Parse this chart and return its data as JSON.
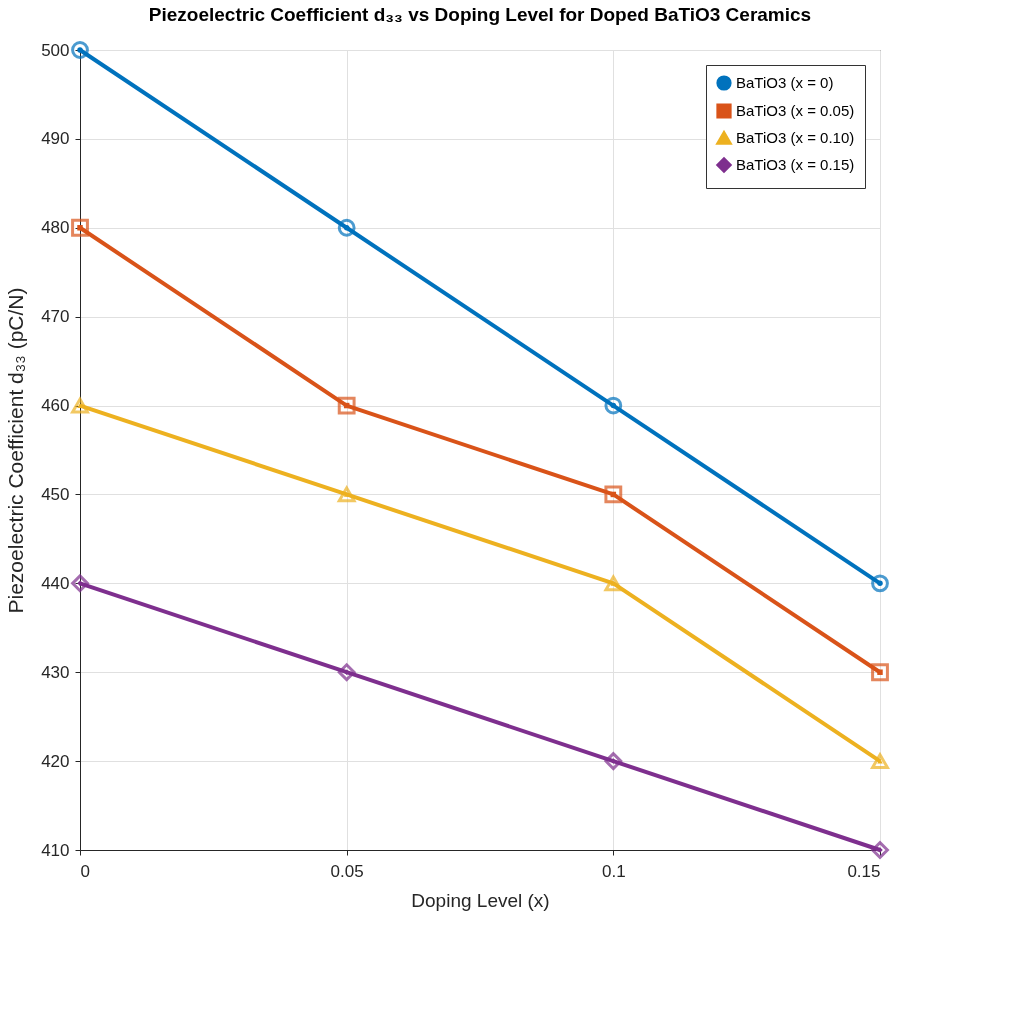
{
  "chart_data": {
    "type": "line",
    "title": "Piezoelectric Coefficient d₃₃ vs Doping Level for Doped BaTiO3 Ceramics",
    "xlabel": "Doping Level (x)",
    "ylabel": "Piezoelectric Coefficient d₃₃  (pC/N)",
    "x": [
      0,
      0.05,
      0.1,
      0.15
    ],
    "series": [
      {
        "name": "BaTiO3 (x = 0)",
        "color": "#0072bd",
        "marker": "circle",
        "values": [
          500,
          480,
          460,
          440
        ]
      },
      {
        "name": "BaTiO3 (x = 0.05)",
        "color": "#d95319",
        "marker": "square",
        "values": [
          480,
          460,
          450,
          430
        ]
      },
      {
        "name": "BaTiO3 (x = 0.10)",
        "color": "#edb120",
        "marker": "triangle",
        "values": [
          460,
          450,
          440,
          420
        ]
      },
      {
        "name": "BaTiO3 (x = 0.15)",
        "color": "#7e2f8e",
        "marker": "diamond",
        "values": [
          440,
          430,
          420,
          410
        ]
      }
    ],
    "xlim": [
      0,
      0.15
    ],
    "xticks": [
      0,
      0.05,
      0.1,
      0.15
    ],
    "ylim": [
      410,
      500
    ],
    "yticks": [
      410,
      420,
      430,
      440,
      450,
      460,
      470,
      480,
      490,
      500
    ],
    "grid": true,
    "legend": "top right",
    "line_style": "solid"
  }
}
